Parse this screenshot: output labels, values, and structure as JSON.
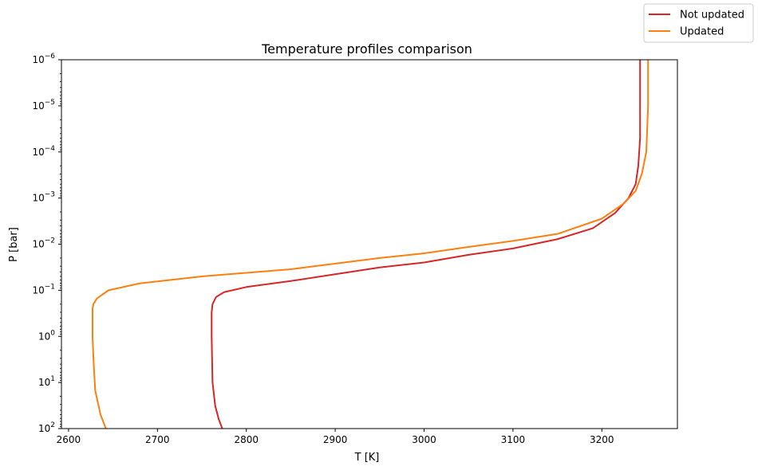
{
  "chart_data": {
    "type": "line",
    "title": "Temperature profiles comparison",
    "xlabel": "T [K]",
    "ylabel": "P [bar]",
    "xlim": [
      2592,
      3285
    ],
    "ylim": [
      100,
      1e-06
    ],
    "yscale": "log",
    "y_inverted": true,
    "grid": false,
    "legend_position": "top-right (outside axes)",
    "x_ticks": [
      2600,
      2700,
      2800,
      2900,
      3000,
      3100,
      3200
    ],
    "y_ticks": [
      {
        "value": 1e-06,
        "base": "10",
        "exp": "−6"
      },
      {
        "value": 1e-05,
        "base": "10",
        "exp": "−5"
      },
      {
        "value": 0.0001,
        "base": "10",
        "exp": "−4"
      },
      {
        "value": 0.001,
        "base": "10",
        "exp": "−3"
      },
      {
        "value": 0.01,
        "base": "10",
        "exp": "−2"
      },
      {
        "value": 0.1,
        "base": "10",
        "exp": "−1"
      },
      {
        "value": 1,
        "base": "10",
        "exp": "0"
      },
      {
        "value": 10,
        "base": "10",
        "exp": "1"
      },
      {
        "value": 100,
        "base": "10",
        "exp": "2"
      }
    ],
    "series": [
      {
        "name": "Not updated",
        "color": "#d62728",
        "points": [
          {
            "x": 2773,
            "y": 100
          },
          {
            "x": 2769,
            "y": 63
          },
          {
            "x": 2765,
            "y": 32
          },
          {
            "x": 2762,
            "y": 10
          },
          {
            "x": 2761,
            "y": 1
          },
          {
            "x": 2761,
            "y": 0.3
          },
          {
            "x": 2762,
            "y": 0.2
          },
          {
            "x": 2766,
            "y": 0.14
          },
          {
            "x": 2775,
            "y": 0.11
          },
          {
            "x": 2800,
            "y": 0.085
          },
          {
            "x": 2850,
            "y": 0.063
          },
          {
            "x": 2900,
            "y": 0.045
          },
          {
            "x": 2950,
            "y": 0.032
          },
          {
            "x": 3000,
            "y": 0.025
          },
          {
            "x": 3050,
            "y": 0.017
          },
          {
            "x": 3100,
            "y": 0.0124
          },
          {
            "x": 3150,
            "y": 0.0078
          },
          {
            "x": 3190,
            "y": 0.0045
          },
          {
            "x": 3215,
            "y": 0.0021
          },
          {
            "x": 3230,
            "y": 0.001
          },
          {
            "x": 3238,
            "y": 0.0005
          },
          {
            "x": 3241,
            "y": 0.0002
          },
          {
            "x": 3243,
            "y": 5e-05
          },
          {
            "x": 3243,
            "y": 1e-06
          }
        ]
      },
      {
        "name": "Updated",
        "color": "#ff7f0e",
        "points": [
          {
            "x": 2642,
            "y": 100
          },
          {
            "x": 2636,
            "y": 50
          },
          {
            "x": 2630,
            "y": 15
          },
          {
            "x": 2628,
            "y": 3
          },
          {
            "x": 2627,
            "y": 1
          },
          {
            "x": 2627,
            "y": 0.25
          },
          {
            "x": 2628,
            "y": 0.2
          },
          {
            "x": 2632,
            "y": 0.15
          },
          {
            "x": 2645,
            "y": 0.1
          },
          {
            "x": 2680,
            "y": 0.071
          },
          {
            "x": 2750,
            "y": 0.05
          },
          {
            "x": 2850,
            "y": 0.035
          },
          {
            "x": 2950,
            "y": 0.02
          },
          {
            "x": 3000,
            "y": 0.0158
          },
          {
            "x": 3050,
            "y": 0.0115
          },
          {
            "x": 3100,
            "y": 0.0085
          },
          {
            "x": 3150,
            "y": 0.006
          },
          {
            "x": 3200,
            "y": 0.0028
          },
          {
            "x": 3225,
            "y": 0.0013
          },
          {
            "x": 3238,
            "y": 0.0007
          },
          {
            "x": 3245,
            "y": 0.0003
          },
          {
            "x": 3250,
            "y": 0.0001
          },
          {
            "x": 3252,
            "y": 1e-05
          },
          {
            "x": 3252,
            "y": 1e-06
          }
        ]
      }
    ]
  }
}
